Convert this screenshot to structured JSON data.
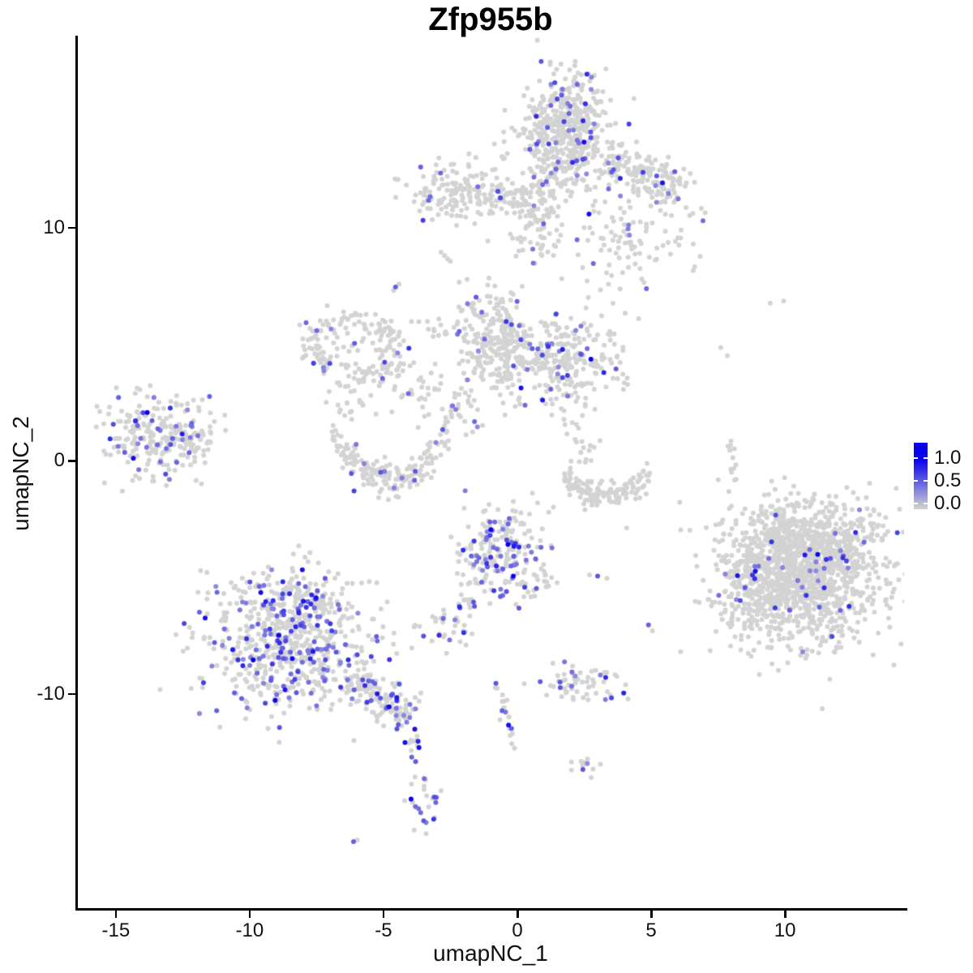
{
  "chart_data": {
    "type": "scatter",
    "title": "Zfp955b",
    "xlabel": "umapNC_1",
    "ylabel": "umapNC_2",
    "xlim": [
      -16.45,
      14.45
    ],
    "ylim": [
      -19.2,
      18.2
    ],
    "grid": false,
    "x_ticks": [
      {
        "v": -15,
        "label": "-15"
      },
      {
        "v": -10,
        "label": "-10"
      },
      {
        "v": -5,
        "label": "-5"
      },
      {
        "v": 0,
        "label": "0"
      },
      {
        "v": 5,
        "label": "5"
      },
      {
        "v": 10,
        "label": "10"
      }
    ],
    "y_ticks": [
      {
        "v": 10,
        "label": "10"
      },
      {
        "v": 0,
        "label": "0"
      },
      {
        "v": -10,
        "label": "-10"
      }
    ],
    "legend": {
      "position": "right",
      "entries": [
        {
          "v": 1.0,
          "label": "1.0"
        },
        {
          "v": 0.5,
          "label": "0.5"
        },
        {
          "v": 0.0,
          "label": "0.0"
        }
      ],
      "low_color": "#d3d3d3",
      "high_color": "#0a02ee"
    },
    "point_radius": 3.0,
    "seed": 1337,
    "clusters": [
      {
        "name": "top-core",
        "shape": "gauss",
        "cx": 1.8,
        "cy": 14.1,
        "sx": 0.8,
        "sy": 1.15,
        "n": 520,
        "frac": 0.07
      },
      {
        "name": "top-arm-lower",
        "shape": "gauss",
        "cx": 0.7,
        "cy": 10.7,
        "sx": 0.5,
        "sy": 1.0,
        "n": 110,
        "frac": 0.05
      },
      {
        "name": "top-band-right",
        "shape": "band",
        "x1": 3.2,
        "y1": 13.0,
        "x2": 6.2,
        "y2": 11.6,
        "s": 0.45,
        "n": 160,
        "frac": 0.06
      },
      {
        "name": "top-right-scatter",
        "shape": "gauss",
        "cx": 4.4,
        "cy": 9.7,
        "sx": 1.3,
        "sy": 1.1,
        "n": 110,
        "frac": 0.07
      },
      {
        "name": "upperleft-blob",
        "shape": "gauss",
        "cx": -2.3,
        "cy": 11.6,
        "sx": 0.85,
        "sy": 0.6,
        "n": 150,
        "frac": 0.07
      },
      {
        "name": "upperleft-band",
        "shape": "band",
        "x1": -1.2,
        "y1": 11.15,
        "x2": 0.45,
        "y2": 11.2,
        "s": 0.25,
        "n": 45,
        "frac": 0.02
      },
      {
        "name": "ring-midleft",
        "shape": "ring",
        "cx": -6.0,
        "cy": 4.8,
        "r": 1.5,
        "sr": 0.33,
        "ys": 0.85,
        "n": 200,
        "frac": 0.05
      },
      {
        "name": "midcenter-blob",
        "shape": "gauss",
        "cx": -0.75,
        "cy": 5.2,
        "sx": 0.75,
        "sy": 1.1,
        "n": 260,
        "frac": 0.055
      },
      {
        "name": "midright-blob",
        "shape": "gauss",
        "cx": 1.75,
        "cy": 4.35,
        "sx": 0.95,
        "sy": 1.0,
        "n": 250,
        "frac": 0.085
      },
      {
        "name": "mid-band",
        "shape": "band",
        "x1": -4.5,
        "y1": 3.4,
        "x2": -1.7,
        "y2": 2.2,
        "s": 0.6,
        "n": 50,
        "frac": 0.05
      },
      {
        "name": "ring-to-blob-band",
        "shape": "band",
        "x1": -3.9,
        "y1": 6.1,
        "x2": -2.2,
        "y2": 5.3,
        "s": 0.3,
        "n": 10,
        "frac": 0.1
      },
      {
        "name": "ring-to-crescent",
        "shape": "band",
        "x1": -6.1,
        "y1": 3.1,
        "x2": -6.5,
        "y2": 1.8,
        "s": 0.35,
        "n": 20,
        "frac": 0.0
      },
      {
        "name": "mid-descend",
        "shape": "band",
        "x1": -2.35,
        "y1": 2.3,
        "x2": -1.3,
        "y2": 1.0,
        "s": 0.3,
        "n": 10,
        "frac": 0.15
      },
      {
        "name": "cl7-right-band",
        "shape": "band",
        "x1": 3.1,
        "y1": 4.5,
        "x2": 4.0,
        "y2": 3.3,
        "s": 0.3,
        "n": 9,
        "frac": 0.12
      },
      {
        "name": "cl7-below",
        "shape": "band",
        "x1": 1.8,
        "y1": 2.4,
        "x2": 2.6,
        "y2": 0.4,
        "s": 0.3,
        "n": 10,
        "frac": 0.05
      },
      {
        "name": "crescent-left",
        "shape": "parabola",
        "xv": -4.75,
        "yv": -0.75,
        "a": 0.42,
        "x1": -6.95,
        "x2": -2.55,
        "s": 0.38,
        "n": 180,
        "frac": 0.05
      },
      {
        "name": "far-left",
        "shape": "gauss",
        "cx": -13.5,
        "cy": 1.15,
        "sx": 0.95,
        "sy": 0.85,
        "n": 230,
        "frac": 0.14
      },
      {
        "name": "farleft-east-lobe",
        "shape": "band",
        "x1": -12.6,
        "y1": 0.8,
        "x2": -11.4,
        "y2": 0.4,
        "s": 0.4,
        "n": 25,
        "frac": 0.04
      },
      {
        "name": "crescent-right",
        "shape": "parabola",
        "xv": 3.35,
        "yv": -1.45,
        "a": 0.3,
        "x1": 1.75,
        "x2": 4.95,
        "s": 0.3,
        "n": 140,
        "frac": 0.0
      },
      {
        "name": "above-crescent-right",
        "shape": "band",
        "x1": 2.5,
        "y1": 1.0,
        "x2": 2.75,
        "y2": -0.3,
        "s": 0.25,
        "n": 9,
        "frac": 0.0
      },
      {
        "name": "center-low",
        "shape": "gauss",
        "cx": -0.6,
        "cy": -3.9,
        "sx": 0.85,
        "sy": 0.95,
        "n": 210,
        "frac": 0.25
      },
      {
        "name": "center-low-tail",
        "shape": "band",
        "x1": -1.2,
        "y1": -5.2,
        "x2": -2.1,
        "y2": -6.5,
        "s": 0.2,
        "n": 14,
        "frac": 0.3
      },
      {
        "name": "right-of-centerlow",
        "shape": "gauss",
        "cx": 0.85,
        "cy": -5.15,
        "sx": 0.35,
        "sy": 0.4,
        "n": 16,
        "frac": 0.0
      },
      {
        "name": "small-left-low",
        "shape": "gauss",
        "cx": -2.55,
        "cy": -7.15,
        "sx": 0.55,
        "sy": 0.4,
        "n": 30,
        "frac": 0.3
      },
      {
        "name": "bigbottom-core",
        "shape": "gauss",
        "cx": -8.45,
        "cy": -7.9,
        "sx": 1.6,
        "sy": 1.45,
        "n": 620,
        "frac": 0.24
      },
      {
        "name": "bigbottom-topbump",
        "shape": "gauss",
        "cx": -8.2,
        "cy": -5.9,
        "sx": 0.9,
        "sy": 0.55,
        "n": 90,
        "frac": 0.2
      },
      {
        "name": "bigbottom-tail",
        "shape": "band",
        "x1": -6.3,
        "y1": -9.3,
        "x2": -4.0,
        "y2": -11.1,
        "s": 0.45,
        "n": 130,
        "frac": 0.2
      },
      {
        "name": "tail-strand",
        "shape": "band",
        "x1": -3.95,
        "y1": -11.4,
        "x2": -3.75,
        "y2": -13.4,
        "s": 0.12,
        "n": 13,
        "frac": 0.25
      },
      {
        "name": "tail-clump",
        "shape": "gauss",
        "cx": -3.5,
        "cy": -14.6,
        "sx": 0.35,
        "sy": 0.6,
        "n": 24,
        "frac": 0.3
      },
      {
        "name": "lowmid-cluster",
        "shape": "gauss",
        "cx": 2.35,
        "cy": -9.6,
        "sx": 0.8,
        "sy": 0.4,
        "n": 60,
        "frac": 0.16
      },
      {
        "name": "lowmid-strand-a",
        "shape": "band",
        "x1": -0.75,
        "y1": -9.7,
        "x2": -0.45,
        "y2": -11.0,
        "s": 0.12,
        "n": 10,
        "frac": 0.3
      },
      {
        "name": "lowmid-strand-b",
        "shape": "band",
        "x1": -0.45,
        "y1": -11.0,
        "x2": 0.05,
        "y2": -12.4,
        "s": 0.12,
        "n": 9,
        "frac": 0.3
      },
      {
        "name": "lowmid-clump",
        "shape": "gauss",
        "cx": 2.4,
        "cy": -13.0,
        "sx": 0.3,
        "sy": 0.25,
        "n": 10,
        "frac": 0.25
      },
      {
        "name": "right-core",
        "shape": "gauss",
        "cx": 10.6,
        "cy": -4.9,
        "sx": 1.55,
        "sy": 1.5,
        "n": 1250,
        "frac": 0.032
      },
      {
        "name": "right-ne-lobe",
        "shape": "gauss",
        "cx": 11.9,
        "cy": -3.3,
        "sx": 0.8,
        "sy": 0.7,
        "n": 150,
        "frac": 0.03
      },
      {
        "name": "right-n-lobe",
        "shape": "gauss",
        "cx": 9.9,
        "cy": -2.9,
        "sx": 0.5,
        "sy": 0.5,
        "n": 80,
        "frac": 0.03
      },
      {
        "name": "right-w-protrusion",
        "shape": "gauss",
        "cx": 8.55,
        "cy": -5.3,
        "sx": 0.4,
        "sy": 0.9,
        "n": 70,
        "frac": 0.1
      },
      {
        "name": "right-strand-above",
        "shape": "band",
        "x1": 7.95,
        "y1": 0.9,
        "x2": 8.15,
        "y2": -0.9,
        "s": 0.12,
        "n": 12,
        "frac": 0.0
      }
    ],
    "singles": [
      {
        "x": -3.8,
        "y": 11.4,
        "v": 0
      },
      {
        "x": -2.85,
        "y": 8.95,
        "v": 0
      },
      {
        "x": -2.72,
        "y": 8.8,
        "v": 0
      },
      {
        "x": -2.6,
        "y": 8.65,
        "v": 0
      },
      {
        "x": -2.5,
        "y": 8.55,
        "v": 0
      },
      {
        "x": -4.55,
        "y": 7.45,
        "v": 0.55
      },
      {
        "x": -4.62,
        "y": 7.3,
        "v": 0
      },
      {
        "x": -4.42,
        "y": 7.58,
        "v": 0
      },
      {
        "x": -11.5,
        "y": 2.75,
        "v": 0.55
      },
      {
        "x": -12.1,
        "y": 2.6,
        "v": 0
      },
      {
        "x": -10.9,
        "y": 1.3,
        "v": 0
      },
      {
        "x": -12.0,
        "y": -0.85,
        "v": 0
      },
      {
        "x": -11.8,
        "y": -1.0,
        "v": 0
      },
      {
        "x": -2.42,
        "y": 2.35,
        "v": 0.45
      },
      {
        "x": -2.3,
        "y": 2.2,
        "v": 0.4
      },
      {
        "x": 2.75,
        "y": 4.35,
        "v": 1.0
      },
      {
        "x": -6.2,
        "y": -0.55,
        "v": 0.6
      },
      {
        "x": -6.1,
        "y": -1.3,
        "v": 0.7
      },
      {
        "x": -0.35,
        "y": -3.6,
        "v": 1.0
      },
      {
        "x": -0.15,
        "y": -4.95,
        "v": 1.0
      },
      {
        "x": -1.6,
        "y": -6.25,
        "v": 0.6
      },
      {
        "x": -6.12,
        "y": -16.35,
        "v": 0.55
      },
      {
        "x": -5.98,
        "y": -16.28,
        "v": 0
      },
      {
        "x": 3.3,
        "y": -9.3,
        "v": 0.8
      },
      {
        "x": 2.45,
        "y": -13.25,
        "v": 0.6
      },
      {
        "x": 4.9,
        "y": -7.05,
        "v": 0.55
      },
      {
        "x": 5.05,
        "y": -7.3,
        "v": 0
      },
      {
        "x": 3.0,
        "y": -4.95,
        "v": 0.6
      },
      {
        "x": 2.7,
        "y": -4.9,
        "v": 0
      },
      {
        "x": 3.35,
        "y": -5.05,
        "v": 0
      },
      {
        "x": 6.1,
        "y": -8.2,
        "v": 0
      },
      {
        "x": 8.0,
        "y": -1.95,
        "v": 0
      },
      {
        "x": 7.6,
        "y": 4.85,
        "v": 0
      },
      {
        "x": 7.85,
        "y": 4.5,
        "v": 0
      },
      {
        "x": 9.45,
        "y": 6.75,
        "v": 0
      },
      {
        "x": 9.95,
        "y": 6.85,
        "v": 0
      },
      {
        "x": -3.5,
        "y": -15.45,
        "v": 0.6
      },
      {
        "x": -0.8,
        "y": -9.55,
        "v": 0.6
      }
    ]
  }
}
